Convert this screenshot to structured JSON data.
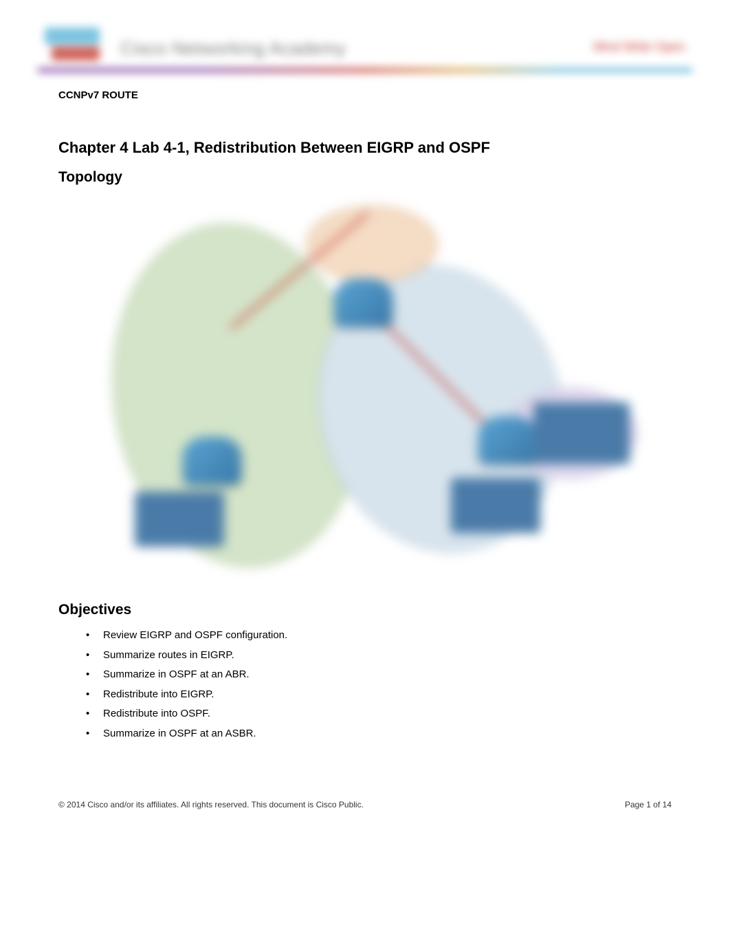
{
  "header": {
    "academy_text": "Cisco Networking Academy",
    "right_text": "Mind Wide Open"
  },
  "document": {
    "course_header": "CCNPv7 ROUTE",
    "chapter_title": "Chapter 4 Lab 4-1, Redistribution Between EIGRP and OSPF",
    "topology_heading": "Topology",
    "objectives_heading": "Objectives"
  },
  "topology": {
    "regions": {
      "eigrp_area": {
        "color": "#d4e4c8",
        "border": "#9bb88a"
      },
      "ospf_area0": {
        "color": "#d8e4ed",
        "border": "#a8c0d4"
      },
      "ospf_area10": {
        "color": "#f5dcc5",
        "border": "#d4a878"
      },
      "ospf_area20": {
        "color": "#e0d8ed",
        "border": "#b8a8d4"
      }
    },
    "router_color_start": "#5aa5d4",
    "router_color_end": "#3978a8",
    "link_color": "#c43a2f",
    "info_box_color": "#4a7ba8"
  },
  "objectives": [
    "Review EIGRP and OSPF configuration.",
    "Summarize routes in EIGRP.",
    "Summarize in OSPF at an ABR.",
    "Redistribute into EIGRP.",
    "Redistribute into OSPF.",
    "Summarize in OSPF at an ASBR."
  ],
  "footer": {
    "copyright": "© 2014 Cisco and/or its affiliates. All rights reserved. This document is Cisco Public.",
    "page_info": "Page 1 of 14"
  }
}
